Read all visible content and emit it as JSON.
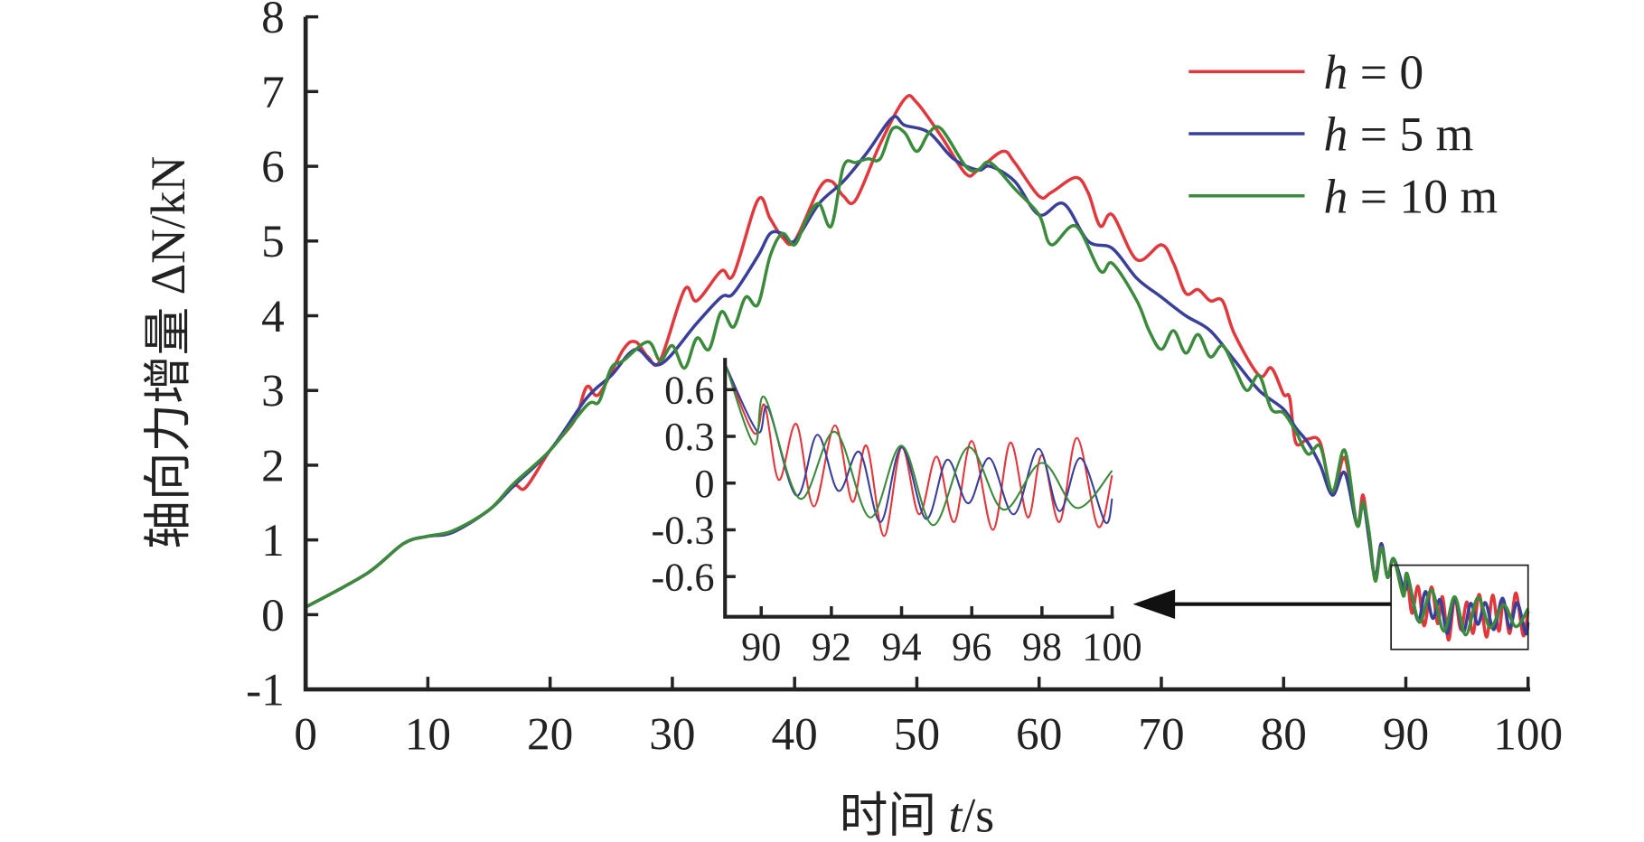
{
  "chart_data": {
    "type": "line",
    "xlabel_prefix": "时间 ",
    "xlabel_var": "t",
    "xlabel_unit": "/s",
    "ylabel_prefix": "轴向力增量 ΔN",
    "ylabel_unit": "/kN",
    "xlim": [
      0,
      100
    ],
    "ylim": [
      -1,
      8
    ],
    "xticks": [
      "0",
      "10",
      "20",
      "30",
      "40",
      "50",
      "60",
      "70",
      "80",
      "90",
      "100"
    ],
    "yticks": [
      "-1",
      "0",
      "1",
      "2",
      "3",
      "4",
      "5",
      "6",
      "7",
      "8"
    ],
    "legend_position": "top-right",
    "series": [
      {
        "name_var": "h",
        "name_rest": " = 0",
        "color": "#e0383c",
        "points": [
          [
            0,
            0.1
          ],
          [
            5,
            0.55
          ],
          [
            8,
            0.95
          ],
          [
            10,
            1.05
          ],
          [
            12,
            1.1
          ],
          [
            15,
            1.4
          ],
          [
            17,
            1.72
          ],
          [
            18,
            1.7
          ],
          [
            20,
            2.2
          ],
          [
            22,
            2.6
          ],
          [
            23,
            3.05
          ],
          [
            24,
            2.95
          ],
          [
            26,
            3.55
          ],
          [
            27,
            3.65
          ],
          [
            28,
            3.45
          ],
          [
            29,
            3.4
          ],
          [
            31,
            4.35
          ],
          [
            32,
            4.2
          ],
          [
            34,
            4.6
          ],
          [
            35,
            4.55
          ],
          [
            37,
            5.55
          ],
          [
            38,
            5.3
          ],
          [
            39,
            5.05
          ],
          [
            40,
            5.0
          ],
          [
            42,
            5.7
          ],
          [
            43,
            5.8
          ],
          [
            44,
            5.6
          ],
          [
            45,
            5.55
          ],
          [
            47,
            6.3
          ],
          [
            49,
            6.9
          ],
          [
            50,
            6.85
          ],
          [
            52,
            6.4
          ],
          [
            54,
            5.9
          ],
          [
            55,
            5.95
          ],
          [
            57,
            6.2
          ],
          [
            58,
            6.05
          ],
          [
            60,
            5.6
          ],
          [
            61,
            5.65
          ],
          [
            63,
            5.85
          ],
          [
            64,
            5.65
          ],
          [
            65,
            5.2
          ],
          [
            66,
            5.35
          ],
          [
            68,
            4.75
          ],
          [
            70,
            4.95
          ],
          [
            71,
            4.7
          ],
          [
            72,
            4.3
          ],
          [
            73,
            4.35
          ],
          [
            74,
            4.2
          ],
          [
            75,
            4.2
          ],
          [
            76,
            3.75
          ],
          [
            78,
            3.2
          ],
          [
            79,
            3.3
          ],
          [
            80,
            2.95
          ],
          [
            80.5,
            2.9
          ],
          [
            81,
            2.3
          ],
          [
            82,
            2.35
          ],
          [
            83,
            2.3
          ],
          [
            84,
            1.6
          ],
          [
            85,
            2.1
          ],
          [
            86,
            1.2
          ],
          [
            86.5,
            1.6
          ],
          [
            87,
            1.0
          ],
          [
            87.5,
            0.5
          ],
          [
            88,
            0.95
          ],
          [
            88.5,
            0.5
          ]
        ]
      },
      {
        "name_var": "h",
        "name_rest": " = 5 m",
        "color": "#3a3f9a",
        "points": [
          [
            0,
            0.1
          ],
          [
            5,
            0.55
          ],
          [
            8,
            0.95
          ],
          [
            10,
            1.05
          ],
          [
            12,
            1.1
          ],
          [
            15,
            1.4
          ],
          [
            17,
            1.72
          ],
          [
            20,
            2.2
          ],
          [
            23,
            2.9
          ],
          [
            25,
            3.2
          ],
          [
            27,
            3.55
          ],
          [
            29,
            3.35
          ],
          [
            32,
            3.9
          ],
          [
            34,
            4.25
          ],
          [
            35,
            4.3
          ],
          [
            37,
            4.8
          ],
          [
            38,
            5.1
          ],
          [
            39,
            5.1
          ],
          [
            40,
            5.0
          ],
          [
            42,
            5.5
          ],
          [
            44,
            5.8
          ],
          [
            46,
            6.2
          ],
          [
            48,
            6.65
          ],
          [
            49,
            6.55
          ],
          [
            51,
            6.45
          ],
          [
            53,
            6.1
          ],
          [
            55,
            5.95
          ],
          [
            56,
            6.0
          ],
          [
            58,
            5.8
          ],
          [
            60,
            5.35
          ],
          [
            62,
            5.5
          ],
          [
            64,
            5.0
          ],
          [
            66,
            4.9
          ],
          [
            68,
            4.5
          ],
          [
            70,
            4.25
          ],
          [
            72,
            4.0
          ],
          [
            74,
            3.8
          ],
          [
            76,
            3.4
          ],
          [
            78,
            3.0
          ],
          [
            80,
            2.75
          ],
          [
            81,
            2.5
          ],
          [
            82,
            2.3
          ],
          [
            83,
            2.0
          ],
          [
            84,
            1.6
          ],
          [
            85,
            1.9
          ],
          [
            86,
            1.2
          ],
          [
            86.5,
            1.5
          ],
          [
            87,
            1.0
          ],
          [
            87.5,
            0.5
          ],
          [
            88,
            0.95
          ],
          [
            88.5,
            0.5
          ]
        ]
      },
      {
        "name_var": "h",
        "name_rest": " = 10 m",
        "color": "#3c8a3c",
        "points": [
          [
            0,
            0.1
          ],
          [
            5,
            0.55
          ],
          [
            8,
            0.95
          ],
          [
            10,
            1.05
          ],
          [
            12,
            1.12
          ],
          [
            15,
            1.4
          ],
          [
            17,
            1.75
          ],
          [
            20,
            2.2
          ],
          [
            23,
            2.8
          ],
          [
            24,
            2.85
          ],
          [
            25,
            3.3
          ],
          [
            26,
            3.4
          ],
          [
            28,
            3.65
          ],
          [
            29,
            3.4
          ],
          [
            30,
            3.6
          ],
          [
            31,
            3.3
          ],
          [
            32,
            3.7
          ],
          [
            33,
            3.55
          ],
          [
            34,
            4.05
          ],
          [
            35,
            3.85
          ],
          [
            36,
            4.25
          ],
          [
            37,
            4.15
          ],
          [
            38,
            4.8
          ],
          [
            39,
            5.1
          ],
          [
            40,
            4.95
          ],
          [
            41,
            5.3
          ],
          [
            42,
            5.5
          ],
          [
            43,
            5.2
          ],
          [
            44,
            6.0
          ],
          [
            45,
            6.05
          ],
          [
            46,
            6.1
          ],
          [
            47,
            6.1
          ],
          [
            48,
            6.5
          ],
          [
            49,
            6.45
          ],
          [
            50,
            6.2
          ],
          [
            51,
            6.45
          ],
          [
            52,
            6.5
          ],
          [
            54,
            6.0
          ],
          [
            55,
            5.95
          ],
          [
            56,
            6.05
          ],
          [
            58,
            5.7
          ],
          [
            60,
            5.35
          ],
          [
            61,
            4.95
          ],
          [
            63,
            5.2
          ],
          [
            65,
            4.6
          ],
          [
            66,
            4.7
          ],
          [
            68,
            4.2
          ],
          [
            69,
            3.8
          ],
          [
            70,
            3.55
          ],
          [
            71,
            3.8
          ],
          [
            72,
            3.5
          ],
          [
            73,
            3.75
          ],
          [
            74,
            3.45
          ],
          [
            75,
            3.6
          ],
          [
            76,
            3.3
          ],
          [
            77,
            3.0
          ],
          [
            78,
            3.2
          ],
          [
            79,
            2.75
          ],
          [
            80,
            2.7
          ],
          [
            81,
            2.45
          ],
          [
            82,
            2.15
          ],
          [
            83,
            2.25
          ],
          [
            84,
            1.65
          ],
          [
            85,
            2.2
          ],
          [
            86,
            1.2
          ],
          [
            86.5,
            1.5
          ],
          [
            87,
            1.1
          ],
          [
            87.5,
            0.45
          ],
          [
            88,
            0.9
          ],
          [
            88.5,
            0.5
          ]
        ]
      }
    ],
    "inset": {
      "xlim": [
        89,
        100
      ],
      "ylim": [
        -0.8,
        0.8
      ],
      "xticks": [
        "90",
        "92",
        "94",
        "96",
        "98",
        "100"
      ],
      "yticks": [
        "0.6",
        "0.3",
        "0",
        "-0.3",
        "-0.6"
      ],
      "series": [
        {
          "points": [
            [
              89,
              0.75
            ],
            [
              89.8,
              0.32
            ],
            [
              90.1,
              0.5
            ],
            [
              90.5,
              0.02
            ],
            [
              91,
              0.38
            ],
            [
              91.5,
              -0.15
            ],
            [
              92.1,
              0.37
            ],
            [
              92.6,
              -0.12
            ],
            [
              93,
              0.24
            ],
            [
              93.5,
              -0.34
            ],
            [
              94,
              0.23
            ],
            [
              94.5,
              -0.2
            ],
            [
              95,
              0.17
            ],
            [
              95.5,
              -0.25
            ],
            [
              96,
              0.27
            ],
            [
              96.6,
              -0.3
            ],
            [
              97.1,
              0.26
            ],
            [
              97.6,
              -0.22
            ],
            [
              98,
              0.18
            ],
            [
              98.5,
              -0.25
            ],
            [
              99,
              0.29
            ],
            [
              99.6,
              -0.28
            ],
            [
              100,
              0.05
            ]
          ]
        },
        {
          "points": [
            [
              89,
              0.75
            ],
            [
              89.9,
              0.33
            ],
            [
              90.2,
              0.48
            ],
            [
              91,
              -0.08
            ],
            [
              91.6,
              0.31
            ],
            [
              92.2,
              -0.05
            ],
            [
              92.8,
              0.2
            ],
            [
              93.4,
              -0.25
            ],
            [
              94,
              0.23
            ],
            [
              94.7,
              -0.23
            ],
            [
              95.3,
              0.15
            ],
            [
              95.9,
              -0.13
            ],
            [
              96.5,
              0.16
            ],
            [
              97.2,
              -0.2
            ],
            [
              97.9,
              0.22
            ],
            [
              98.5,
              -0.18
            ],
            [
              99.1,
              0.16
            ],
            [
              99.8,
              -0.25
            ],
            [
              100,
              -0.1
            ]
          ]
        },
        {
          "points": [
            [
              89,
              0.75
            ],
            [
              89.8,
              0.25
            ],
            [
              90.1,
              0.55
            ],
            [
              91.1,
              -0.1
            ],
            [
              92.1,
              0.33
            ],
            [
              93.1,
              -0.22
            ],
            [
              94,
              0.24
            ],
            [
              94.9,
              -0.27
            ],
            [
              95.9,
              0.23
            ],
            [
              96.9,
              -0.17
            ],
            [
              98,
              0.13
            ],
            [
              99,
              -0.16
            ],
            [
              100,
              0.08
            ]
          ]
        }
      ]
    }
  }
}
